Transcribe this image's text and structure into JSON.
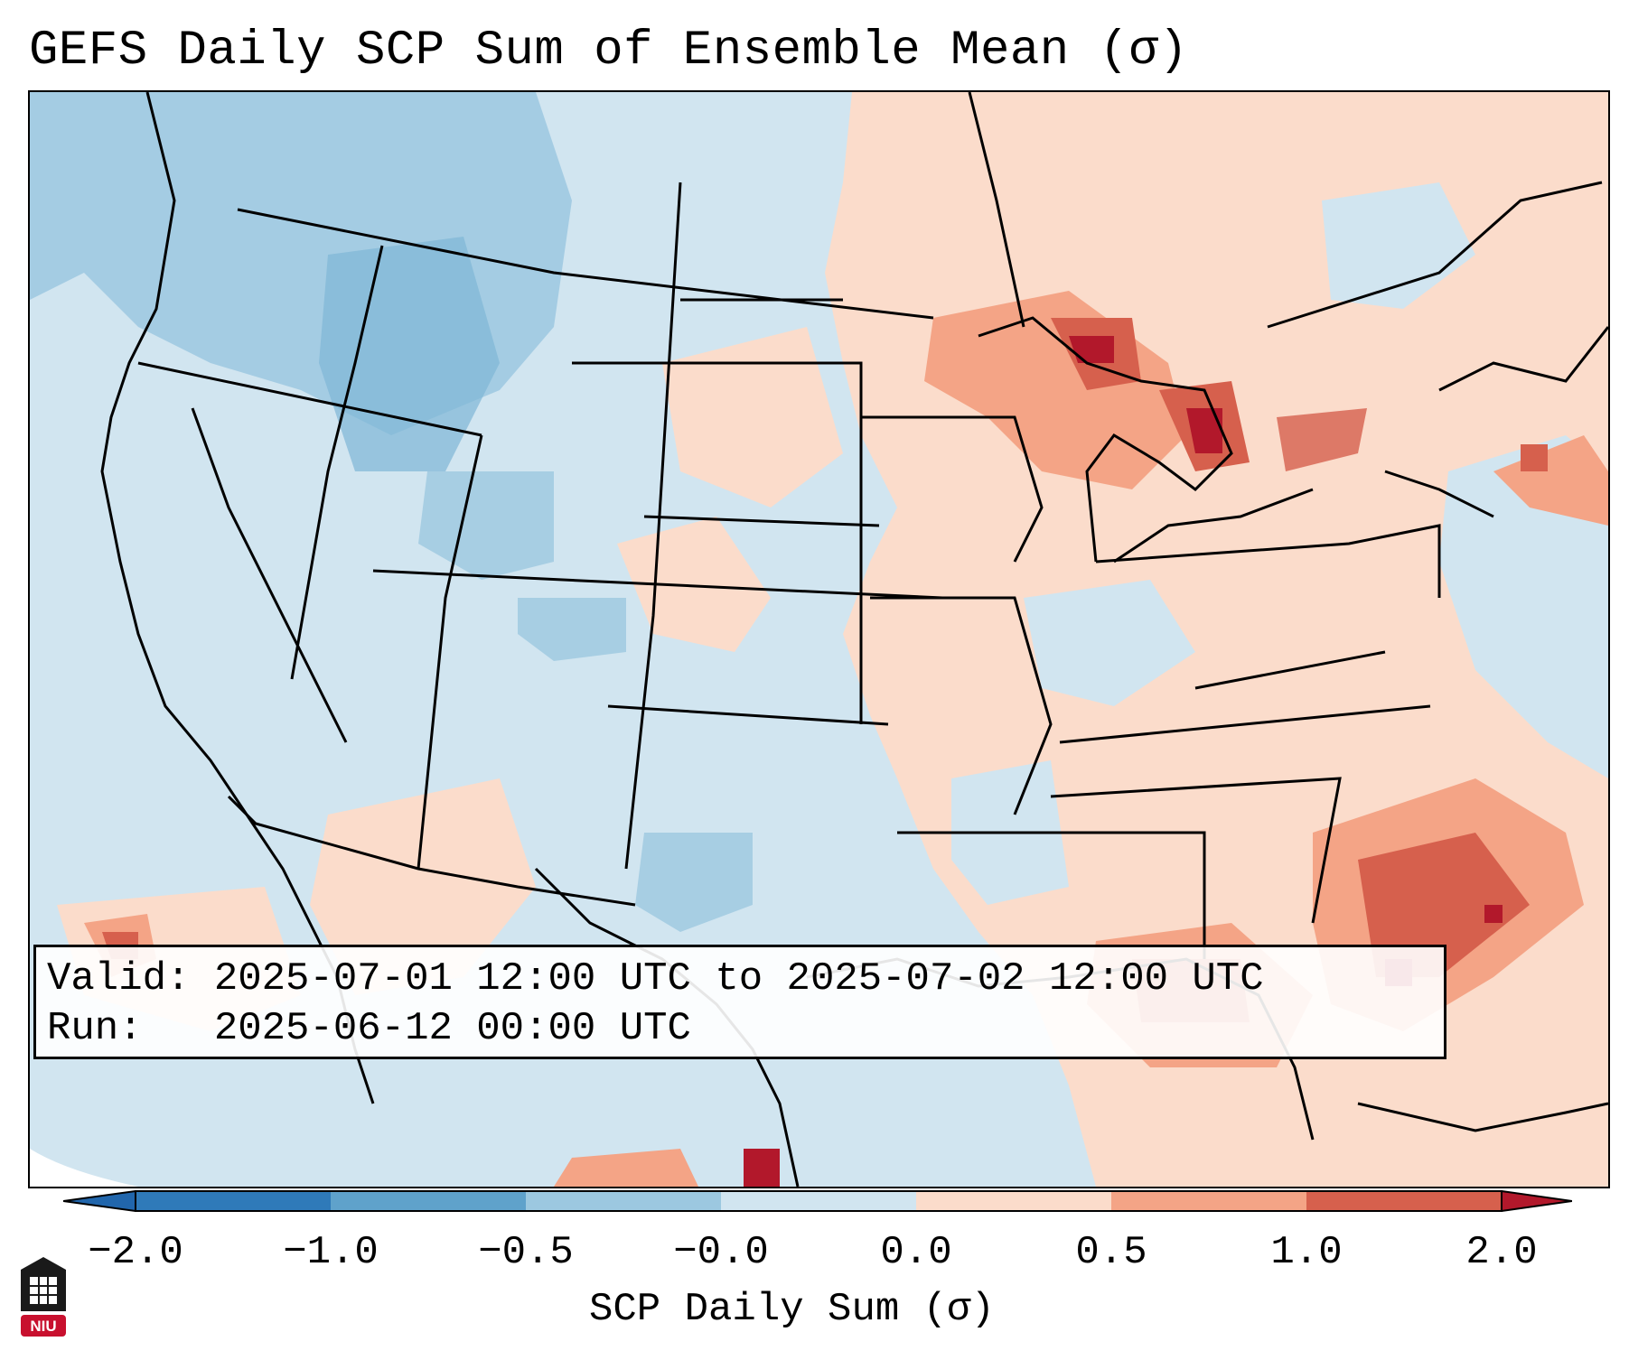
{
  "title": "GEFS Daily SCP Sum of Ensemble Mean (σ)",
  "info": {
    "valid": "Valid: 2025-07-01 12:00 UTC to 2025-07-02 12:00 UTC",
    "run": "Run:   2025-06-12 00:00 UTC"
  },
  "colorbar": {
    "label": "SCP Daily Sum (σ)",
    "ticks": [
      "−2.0",
      "−1.0",
      "−0.5",
      "−0.0",
      "0.0",
      "0.5",
      "1.0",
      "2.0"
    ],
    "colors": [
      "#2f7ab9",
      "#5fa2cb",
      "#9cc8e0",
      "#d1e5f0",
      "#fbdccb",
      "#f4a486",
      "#d6604d",
      "#b2182b"
    ],
    "extend_low_color": "#2166ac",
    "extend_high_color": "#b2182b"
  },
  "colors": {
    "neutral_blue": "#d1e5f0",
    "light_blue": "#9cc8e0",
    "light_red": "#fbdccb",
    "mid_red": "#f4a486",
    "strong_red": "#d6604d",
    "dark_red": "#b2182b"
  },
  "logo": {
    "text": "NIU",
    "color": "#c8102e"
  }
}
